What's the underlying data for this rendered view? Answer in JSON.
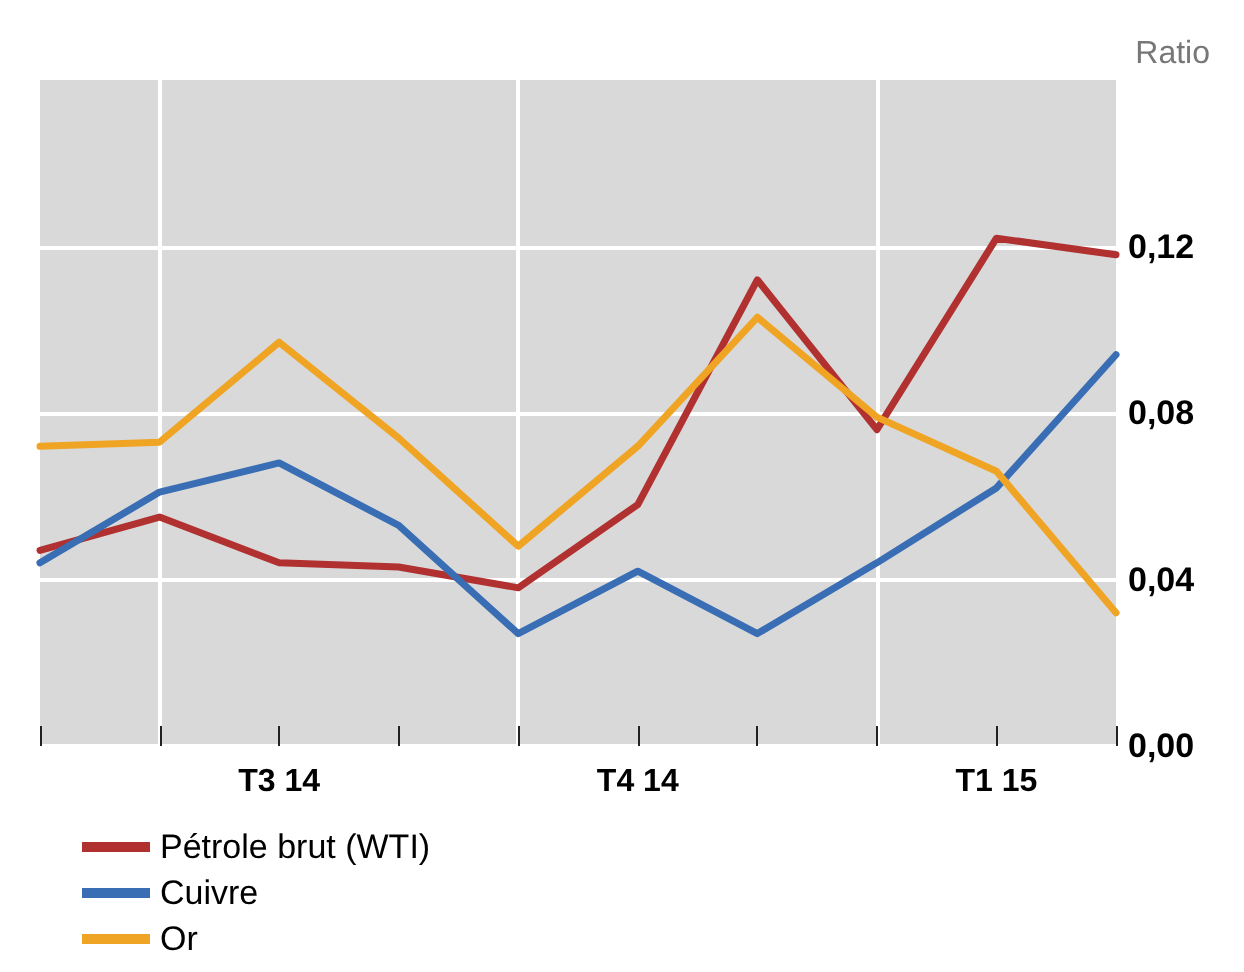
{
  "chart_data": {
    "type": "line",
    "ylabel": "Ratio",
    "categories": [
      null,
      null,
      "T3 14",
      null,
      null,
      "T4 14",
      null,
      null,
      "T1 15",
      null
    ],
    "ylim": [
      0,
      0.16
    ],
    "yticks": [
      {
        "value": 0,
        "label": "0,00"
      },
      {
        "value": 0.04,
        "label": "0,04"
      },
      {
        "value": 0.08,
        "label": "0,08"
      },
      {
        "value": 0.12,
        "label": "0,12"
      }
    ],
    "series": [
      {
        "name": "Pétrole brut (WTI)",
        "color": "#b0312f",
        "values": [
          0.047,
          0.055,
          0.044,
          0.043,
          0.038,
          0.058,
          0.112,
          0.076,
          0.122,
          0.118
        ]
      },
      {
        "name": "Cuivre",
        "color": "#3a6eb4",
        "values": [
          0.044,
          0.061,
          0.068,
          0.053,
          0.027,
          0.042,
          0.027,
          0.044,
          0.062,
          0.094
        ]
      },
      {
        "name": "Or",
        "color": "#f0a424",
        "values": [
          0.072,
          0.073,
          0.097,
          0.074,
          0.048,
          0.072,
          0.103,
          0.079,
          0.066,
          0.032
        ]
      }
    ],
    "grid": true,
    "legend": "bottom left",
    "marker": "none",
    "line_style": "solid"
  }
}
